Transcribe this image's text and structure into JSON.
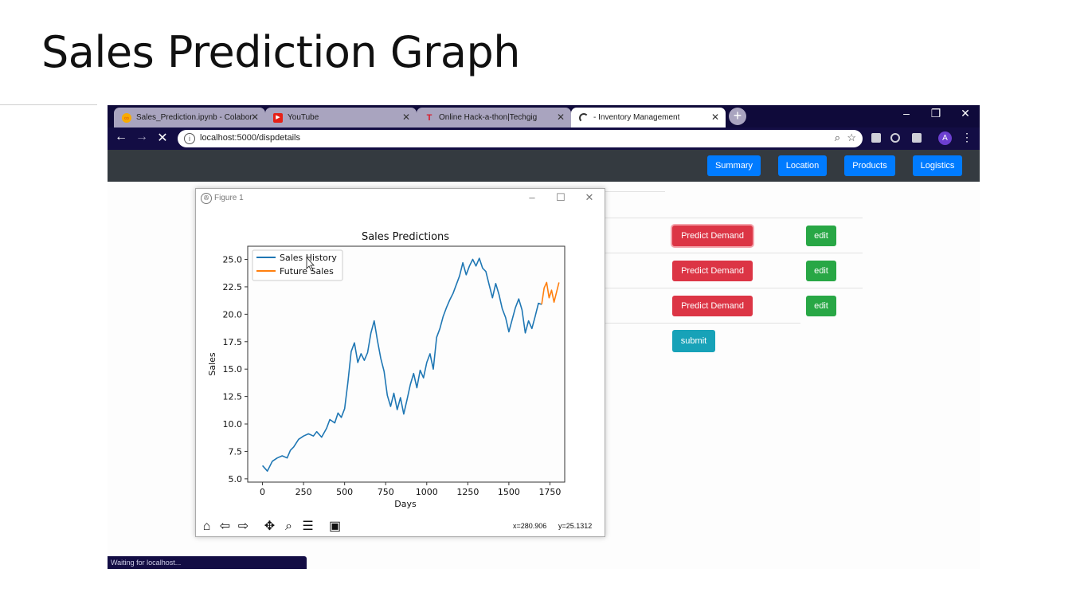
{
  "slide": {
    "title": "Sales Prediction Graph"
  },
  "browser": {
    "tabs": [
      {
        "label": "Sales_Prediction.ipynb - Colabor",
        "favicon": "colab-icon"
      },
      {
        "label": "YouTube",
        "favicon": "youtube-icon"
      },
      {
        "label": "Online Hack-a-thon|Techgig",
        "favicon": "techgig-icon"
      },
      {
        "label": "- Inventory Management",
        "favicon": "loading-spinner-icon"
      }
    ],
    "new_tab": "+",
    "url": "localhost:5000/dispdetails",
    "avatar_letter": "A",
    "status_text": "Waiting for localhost..."
  },
  "app": {
    "nav": [
      "Summary",
      "Location",
      "Products",
      "Logistics"
    ],
    "rows": [
      {
        "predict_label": "Predict Demand",
        "edit_label": "edit"
      },
      {
        "predict_label": "Predict Demand",
        "edit_label": "edit"
      },
      {
        "predict_label": "Predict Demand",
        "edit_label": "edit"
      }
    ],
    "submit_label": "submit"
  },
  "figure": {
    "window_title": "Figure 1",
    "coords": {
      "x": "x=280.906",
      "y": "y=25.1312"
    }
  },
  "colors": {
    "history": "#1f77b4",
    "future": "#ff7f0e",
    "nav_button": "#007bff",
    "danger": "#dc3545",
    "success": "#28a745",
    "info": "#17a2b8"
  },
  "chart_data": {
    "type": "line",
    "title": "Sales Predictions",
    "xlabel": "Days",
    "ylabel": "Sales",
    "xlim": [
      -90,
      1840
    ],
    "ylim": [
      4.7,
      26.2
    ],
    "xticks": [
      0,
      250,
      500,
      750,
      1000,
      1250,
      1500,
      1750
    ],
    "yticks": [
      5.0,
      7.5,
      10.0,
      12.5,
      15.0,
      17.5,
      20.0,
      22.5,
      25.0
    ],
    "legend_position": "upper-left",
    "grid": false,
    "series": [
      {
        "name": "Sales History",
        "color": "#1f77b4",
        "x": [
          0,
          30,
          60,
          90,
          120,
          150,
          170,
          190,
          220,
          250,
          280,
          310,
          330,
          360,
          390,
          410,
          440,
          460,
          480,
          500,
          520,
          540,
          560,
          580,
          600,
          620,
          640,
          660,
          680,
          700,
          720,
          740,
          760,
          780,
          800,
          820,
          840,
          860,
          880,
          900,
          920,
          940,
          960,
          980,
          1000,
          1020,
          1040,
          1060,
          1080,
          1100,
          1120,
          1140,
          1160,
          1180,
          1200,
          1220,
          1240,
          1260,
          1280,
          1300,
          1320,
          1340,
          1360,
          1380,
          1400,
          1420,
          1440,
          1460,
          1480,
          1500,
          1520,
          1540,
          1560,
          1580,
          1600,
          1620,
          1640,
          1660,
          1680,
          1700
        ],
        "y": [
          6.2,
          5.7,
          6.6,
          6.9,
          7.1,
          6.9,
          7.6,
          7.9,
          8.6,
          8.9,
          9.1,
          8.9,
          9.3,
          8.8,
          9.6,
          10.4,
          10.1,
          11.0,
          10.6,
          11.4,
          13.8,
          16.6,
          17.4,
          15.6,
          16.4,
          15.8,
          16.5,
          18.3,
          19.4,
          17.6,
          16.0,
          14.8,
          12.6,
          11.6,
          12.8,
          11.3,
          12.4,
          10.9,
          12.2,
          13.6,
          14.6,
          13.3,
          14.9,
          14.2,
          15.6,
          16.4,
          15.0,
          17.9,
          18.7,
          19.8,
          20.6,
          21.3,
          21.9,
          22.7,
          23.5,
          24.7,
          23.6,
          24.4,
          25.0,
          24.4,
          25.1,
          24.2,
          23.9,
          22.7,
          21.5,
          22.8,
          21.8,
          20.5,
          19.7,
          18.4,
          19.5,
          20.6,
          21.4,
          20.4,
          18.3,
          19.4,
          18.7,
          19.8,
          21.0,
          20.9
        ]
      },
      {
        "name": "Future Sales",
        "color": "#ff7f0e",
        "x": [
          1700,
          1715,
          1730,
          1745,
          1760,
          1775,
          1790,
          1805
        ],
        "y": [
          20.9,
          22.4,
          22.9,
          21.5,
          22.2,
          21.1,
          22.0,
          22.9
        ]
      }
    ]
  }
}
